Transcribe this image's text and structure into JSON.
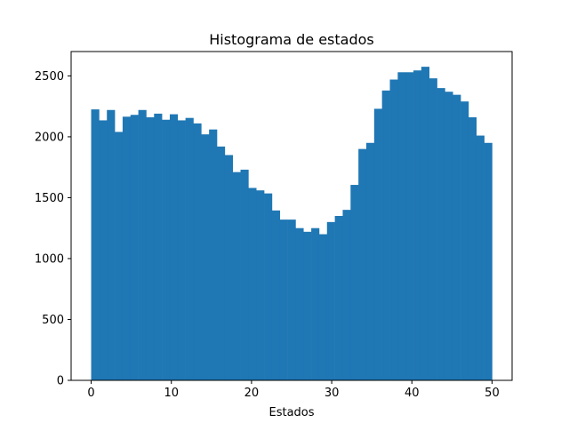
{
  "chart_data": {
    "type": "bar",
    "title": "Histograma de estados",
    "xlabel": "Estados",
    "ylabel": "",
    "bin_width": 1,
    "x_range": [
      0,
      50
    ],
    "xlim": [
      -2.5,
      52.5
    ],
    "ylim": [
      0,
      2700
    ],
    "xticks": [
      0,
      10,
      20,
      30,
      40,
      50
    ],
    "yticks": [
      0,
      500,
      1000,
      1500,
      2000,
      2500
    ],
    "xtick_labels": [
      "0",
      "10",
      "20",
      "30",
      "40",
      "50"
    ],
    "ytick_labels": [
      "0",
      "500",
      "1000",
      "1500",
      "2000",
      "2500"
    ],
    "bar_color": "#1f77b4",
    "grid": false,
    "legend": "none",
    "values": [
      2225,
      2135,
      2220,
      2040,
      2165,
      2180,
      2220,
      2160,
      2190,
      2140,
      2185,
      2135,
      2155,
      2110,
      2020,
      2060,
      1920,
      1850,
      1710,
      1730,
      1580,
      1560,
      1535,
      1395,
      1320,
      1320,
      1250,
      1220,
      1250,
      1200,
      1300,
      1350,
      1400,
      1605,
      1900,
      1950,
      2230,
      2380,
      2470,
      2530,
      2530,
      2545,
      2575,
      2480,
      2400,
      2370,
      2345,
      2290,
      2160,
      2010,
      1950
    ]
  }
}
